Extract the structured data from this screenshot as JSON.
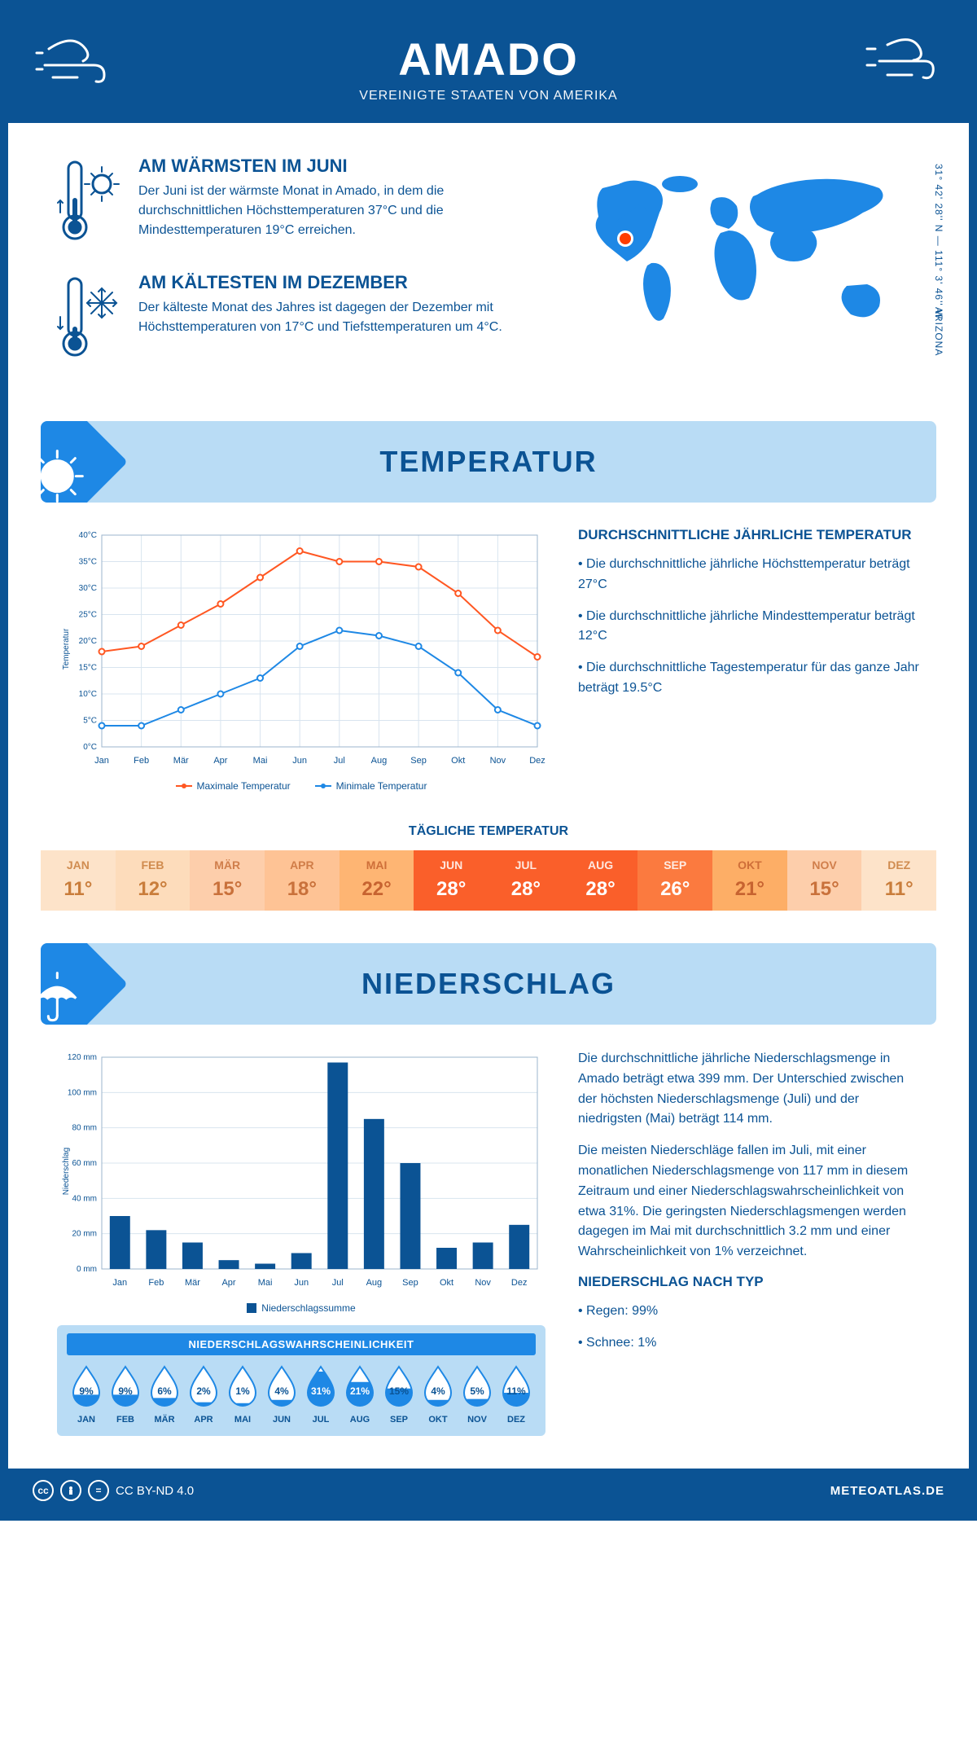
{
  "header": {
    "title": "AMADO",
    "subtitle": "VEREINIGTE STAATEN VON AMERIKA"
  },
  "coords": "31° 42' 28'' N — 111° 3' 46'' W",
  "region": "ARIZONA",
  "facts": {
    "warmest": {
      "title": "AM WÄRMSTEN IM JUNI",
      "text": "Der Juni ist der wärmste Monat in Amado, in dem die durchschnittlichen Höchsttemperaturen 37°C und die Mindesttemperaturen 19°C erreichen."
    },
    "coldest": {
      "title": "AM KÄLTESTEN IM DEZEMBER",
      "text": "Der kälteste Monat des Jahres ist dagegen der Dezember mit Höchsttemperaturen von 17°C und Tiefsttemperaturen um 4°C."
    }
  },
  "sections": {
    "temp": "TEMPERATUR",
    "precip": "NIEDERSCHLAG"
  },
  "temp_chart": {
    "type": "line",
    "months": [
      "Jan",
      "Feb",
      "Mär",
      "Apr",
      "Mai",
      "Jun",
      "Jul",
      "Aug",
      "Sep",
      "Okt",
      "Nov",
      "Dez"
    ],
    "max": [
      18,
      19,
      23,
      27,
      32,
      37,
      35,
      35,
      34,
      29,
      22,
      17
    ],
    "min": [
      4,
      4,
      7,
      10,
      13,
      19,
      22,
      21,
      19,
      14,
      7,
      4
    ],
    "max_color": "#ff5722",
    "min_color": "#1e88e5",
    "grid_color": "#d8e4ef",
    "ylim": [
      0,
      40
    ],
    "ytick_step": 5,
    "y_axis_label": "Temperatur",
    "legend_max": "Maximale Temperatur",
    "legend_min": "Minimale Temperatur"
  },
  "temp_info": {
    "title": "DURCHSCHNITTLICHE JÄHRLICHE TEMPERATUR",
    "lines": [
      "• Die durchschnittliche jährliche Höchsttemperatur beträgt 27°C",
      "• Die durchschnittliche jährliche Mindesttemperatur beträgt 12°C",
      "• Die durchschnittliche Tagestemperatur für das ganze Jahr beträgt 19.5°C"
    ]
  },
  "daily": {
    "title": "TÄGLICHE TEMPERATUR",
    "months": [
      "JAN",
      "FEB",
      "MÄR",
      "APR",
      "MAI",
      "JUN",
      "JUL",
      "AUG",
      "SEP",
      "OKT",
      "NOV",
      "DEZ"
    ],
    "values": [
      "11°",
      "12°",
      "15°",
      "18°",
      "22°",
      "28°",
      "28°",
      "28°",
      "26°",
      "21°",
      "15°",
      "11°"
    ],
    "bg_colors": [
      "#fde3c9",
      "#fddcbb",
      "#fdceab",
      "#fec395",
      "#feb573",
      "#fa5f2a",
      "#fa5f2a",
      "#fa5f2a",
      "#fb7a3f",
      "#fdae66",
      "#fdceab",
      "#fde3c9"
    ],
    "text_colors": [
      "#c97d3b",
      "#c97d3b",
      "#c9713b",
      "#c9713b",
      "#c76330",
      "#ffffff",
      "#ffffff",
      "#ffffff",
      "#ffffff",
      "#c76330",
      "#c9713b",
      "#c97d3b"
    ]
  },
  "precip_chart": {
    "type": "bar",
    "months": [
      "Jan",
      "Feb",
      "Mär",
      "Apr",
      "Mai",
      "Jun",
      "Jul",
      "Aug",
      "Sep",
      "Okt",
      "Nov",
      "Dez"
    ],
    "values": [
      30,
      22,
      15,
      5,
      3,
      9,
      117,
      85,
      60,
      12,
      15,
      25
    ],
    "bar_color": "#0b5394",
    "grid_color": "#d8e4ef",
    "ylim": [
      0,
      120
    ],
    "ytick_step": 20,
    "y_axis_label": "Niederschlag",
    "legend_label": "Niederschlagssumme"
  },
  "precip_info": {
    "p1": "Die durchschnittliche jährliche Niederschlagsmenge in Amado beträgt etwa 399 mm. Der Unterschied zwischen der höchsten Niederschlagsmenge (Juli) und der niedrigsten (Mai) beträgt 114 mm.",
    "p2": "Die meisten Niederschläge fallen im Juli, mit einer monatlichen Niederschlagsmenge von 117 mm in diesem Zeitraum und einer Niederschlagswahrscheinlichkeit von etwa 31%. Die geringsten Niederschlagsmengen werden dagegen im Mai mit durchschnittlich 3.2 mm und einer Wahrscheinlichkeit von 1% verzeichnet.",
    "type_title": "NIEDERSCHLAG NACH TYP",
    "type_lines": [
      "• Regen: 99%",
      "• Schnee: 1%"
    ]
  },
  "probability": {
    "title": "NIEDERSCHLAGSWAHRSCHEINLICHKEIT",
    "months": [
      "JAN",
      "FEB",
      "MÄR",
      "APR",
      "MAI",
      "JUN",
      "JUL",
      "AUG",
      "SEP",
      "OKT",
      "NOV",
      "DEZ"
    ],
    "values": [
      "9%",
      "9%",
      "6%",
      "2%",
      "1%",
      "4%",
      "31%",
      "21%",
      "15%",
      "4%",
      "5%",
      "11%"
    ],
    "fill_pct": [
      29,
      29,
      19,
      6,
      3,
      13,
      100,
      68,
      48,
      13,
      16,
      35
    ]
  },
  "footer": {
    "license": "CC BY-ND 4.0",
    "site": "METEOATLAS.DE"
  },
  "colors": {
    "primary": "#0b5394",
    "accent": "#1e88e5",
    "banner": "#b9dcf5"
  }
}
